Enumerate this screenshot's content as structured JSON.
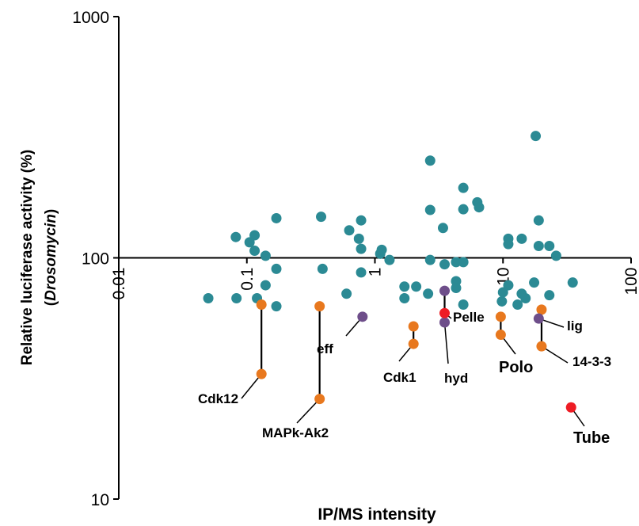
{
  "chart_data": {
    "type": "scatter",
    "xscale": "log",
    "yscale": "log",
    "xlim": [
      0.01,
      100
    ],
    "ylim": [
      10,
      1000
    ],
    "xlabel": "IP/MS intensity",
    "ylabel_line1": "Relative luciferase activity (%)",
    "ylabel_open": "(",
    "ylabel_italic": "Drosomycin",
    "ylabel_close": ")",
    "y_ticks": [
      {
        "value": 1000,
        "label": "1000"
      },
      {
        "value": 100,
        "label": "100"
      },
      {
        "value": 10,
        "label": "10"
      }
    ],
    "x_ticks": [
      {
        "value": 0.01,
        "label": "0.01"
      },
      {
        "value": 0.1,
        "label": "0.1"
      },
      {
        "value": 1,
        "label": "1"
      },
      {
        "value": 10,
        "label": "10"
      },
      {
        "value": 100,
        "label": "100"
      }
    ],
    "colors": {
      "teal": "#2b8a94",
      "orange": "#e8781e",
      "purple": "#6e4e8a",
      "red": "#ee1c24"
    },
    "series": [
      {
        "color": "teal",
        "points": [
          [
            0.05,
            68
          ],
          [
            0.082,
            122
          ],
          [
            0.083,
            68
          ],
          [
            0.105,
            116
          ],
          [
            0.115,
            124
          ],
          [
            0.115,
            107
          ],
          [
            0.12,
            68
          ],
          [
            0.14,
            102
          ],
          [
            0.14,
            77
          ],
          [
            0.17,
            146
          ],
          [
            0.17,
            90
          ],
          [
            0.17,
            63
          ],
          [
            0.38,
            148
          ],
          [
            0.39,
            90
          ],
          [
            0.6,
            71
          ],
          [
            0.63,
            130
          ],
          [
            0.75,
            120
          ],
          [
            0.78,
            143
          ],
          [
            0.78,
            109
          ],
          [
            0.78,
            87
          ],
          [
            1.1,
            104
          ],
          [
            1.13,
            108
          ],
          [
            1.3,
            98
          ],
          [
            1.7,
            76
          ],
          [
            1.7,
            68
          ],
          [
            2.1,
            76
          ],
          [
            2.6,
            71
          ],
          [
            2.7,
            98
          ],
          [
            2.7,
            253
          ],
          [
            2.7,
            158
          ],
          [
            3.4,
            133
          ],
          [
            3.5,
            94
          ],
          [
            4.3,
            96
          ],
          [
            4.3,
            80
          ],
          [
            4.3,
            75
          ],
          [
            4.9,
            195
          ],
          [
            4.9,
            159
          ],
          [
            4.9,
            96
          ],
          [
            4.9,
            64
          ],
          [
            6.3,
            170
          ],
          [
            6.5,
            162
          ],
          [
            9.8,
            66
          ],
          [
            10,
            72
          ],
          [
            11,
            120
          ],
          [
            11,
            114
          ],
          [
            11,
            77
          ],
          [
            13,
            64
          ],
          [
            14,
            71
          ],
          [
            14,
            120
          ],
          [
            15,
            68
          ],
          [
            17.5,
            79
          ],
          [
            18,
            320
          ],
          [
            19,
            143
          ],
          [
            19,
            112
          ],
          [
            23,
            112
          ],
          [
            23,
            70
          ],
          [
            26,
            102
          ],
          [
            35,
            79
          ]
        ]
      },
      {
        "color": "orange",
        "points": [
          [
            0.13,
            64
          ],
          [
            0.13,
            33
          ],
          [
            0.37,
            63
          ],
          [
            0.37,
            26
          ],
          [
            2,
            52
          ],
          [
            2,
            44
          ],
          [
            9.6,
            57
          ],
          [
            9.6,
            48
          ],
          [
            20,
            61
          ],
          [
            20,
            43
          ]
        ]
      },
      {
        "color": "purple",
        "points": [
          [
            0.8,
            57
          ],
          [
            3.5,
            73
          ],
          [
            3.5,
            54
          ],
          [
            19,
            56
          ]
        ]
      },
      {
        "color": "red",
        "points": [
          [
            3.5,
            59
          ],
          [
            34,
            24
          ]
        ]
      }
    ],
    "connectors": [
      {
        "x": 0.13,
        "y1": 64,
        "y2": 33
      },
      {
        "x": 0.37,
        "y1": 63,
        "y2": 26
      },
      {
        "x": 2,
        "y1": 52,
        "y2": 44
      },
      {
        "x": 3.5,
        "y1": 73,
        "y2": 54
      },
      {
        "x": 9.6,
        "y1": 57,
        "y2": 48
      },
      {
        "x": 20,
        "y1": 61,
        "y2": 43
      }
    ],
    "annotations": [
      {
        "key": "cdk12",
        "text": "Cdk12",
        "x": 0.13,
        "y": 33
      },
      {
        "key": "mapk",
        "text": "MAPk-Ak2",
        "x": 0.37,
        "y": 26
      },
      {
        "key": "eff",
        "text": "eff",
        "x": 0.8,
        "y": 57
      },
      {
        "key": "cdk1",
        "text": "Cdk1",
        "x": 2,
        "y": 44
      },
      {
        "key": "pelle",
        "text": "Pelle",
        "x": 3.5,
        "y": 59
      },
      {
        "key": "hyd",
        "text": "hyd",
        "x": 3.5,
        "y": 54
      },
      {
        "key": "polo",
        "text": "Polo",
        "x": 9.6,
        "y": 48
      },
      {
        "key": "lig",
        "text": "lig",
        "x": 19,
        "y": 56
      },
      {
        "key": "1433",
        "text": "14-3-3",
        "x": 20,
        "y": 43
      },
      {
        "key": "tube",
        "text": "Tube",
        "x": 34,
        "y": 24
      }
    ]
  }
}
